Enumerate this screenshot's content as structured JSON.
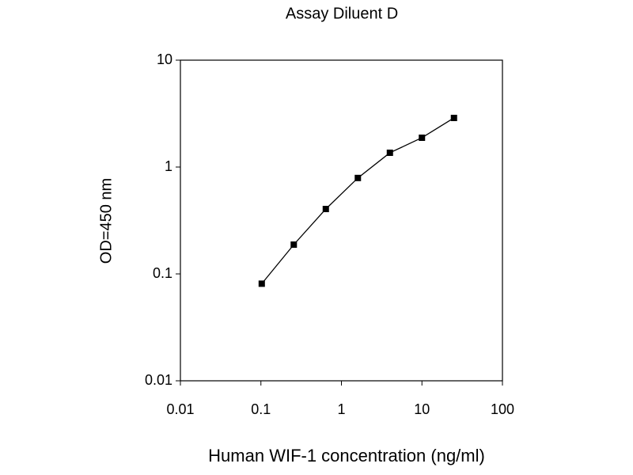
{
  "chart_data": {
    "type": "line",
    "title": "Assay Diluent D",
    "xlabel": "Human WIF-1 concentration (ng/ml)",
    "ylabel": "OD=450 nm",
    "x": [
      0.1024,
      0.256,
      0.64,
      1.6,
      4,
      10,
      25
    ],
    "series": [
      {
        "color": "#000000",
        "values": [
          0.081,
          0.188,
          0.405,
          0.79,
          1.36,
          1.88,
          2.88
        ]
      }
    ],
    "xlim": [
      0.01,
      100
    ],
    "xticks": [
      0.01,
      0.1,
      1,
      10,
      100
    ],
    "ylim": [
      0.01,
      10
    ],
    "yticks": [
      0.01,
      0.1,
      1,
      10
    ],
    "xscale": "log",
    "yscale": "log",
    "grid": false
  }
}
